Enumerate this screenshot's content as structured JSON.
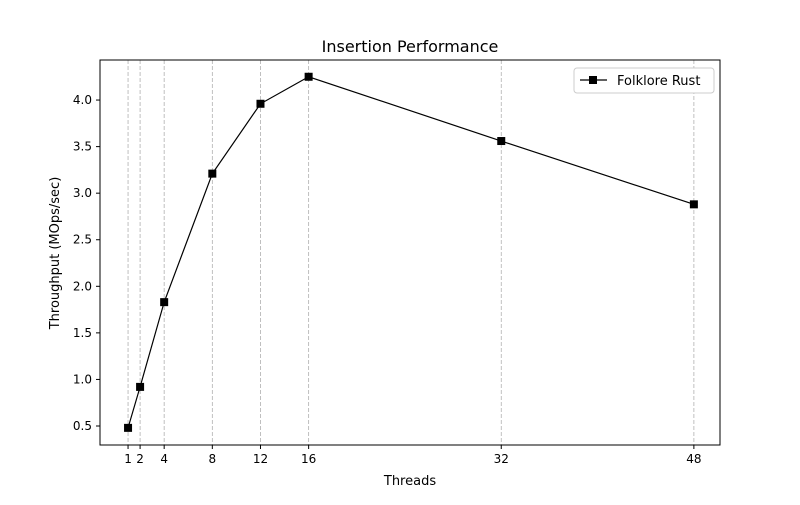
{
  "chart_data": {
    "type": "line",
    "title": "Insertion Performance",
    "xlabel": "Threads",
    "ylabel": "Throughput (MOps/sec)",
    "x": [
      1,
      2,
      4,
      8,
      12,
      16,
      32,
      48
    ],
    "xticks": [
      "1",
      "2",
      "4",
      "8",
      "12",
      "16",
      "32",
      "48"
    ],
    "yticks": [
      "0.5",
      "1.0",
      "1.5",
      "2.0",
      "2.5",
      "3.0",
      "3.5",
      "4.0"
    ],
    "xlim": [
      -1.33,
      50.17
    ],
    "ylim": [
      0.296,
      4.43
    ],
    "grid": "vertical dashed at x ticks",
    "legend": "top-right",
    "series": [
      {
        "name": "Folklore Rust",
        "color": "#000000",
        "marker": "square",
        "values": [
          0.48,
          0.92,
          1.83,
          3.21,
          3.96,
          4.25,
          3.56,
          2.88
        ]
      }
    ]
  }
}
